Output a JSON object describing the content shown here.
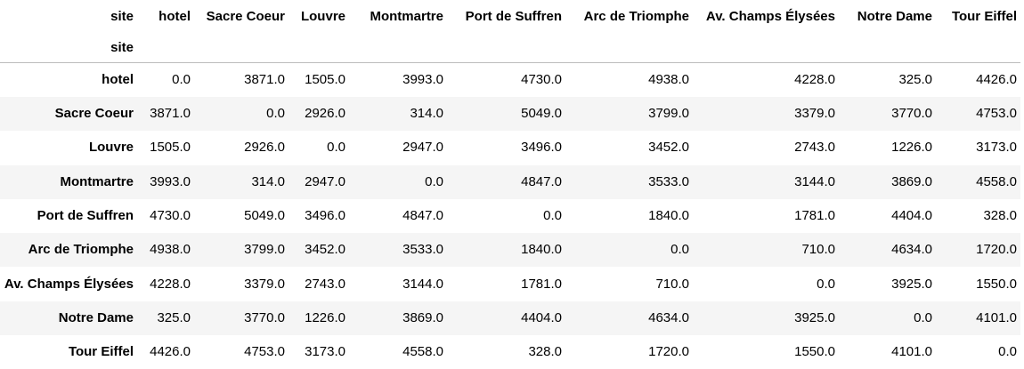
{
  "table": {
    "corner_label": "site",
    "index_name": "site",
    "columns": [
      "hotel",
      "Sacre Coeur",
      "Louvre",
      "Montmartre",
      "Port de Suffren",
      "Arc de Triomphe",
      "Av. Champs Élysées",
      "Notre Dame",
      "Tour Eiffel"
    ],
    "rows": [
      {
        "label": "hotel",
        "values": [
          "0.0",
          "3871.0",
          "1505.0",
          "3993.0",
          "4730.0",
          "4938.0",
          "4228.0",
          "325.0",
          "4426.0"
        ]
      },
      {
        "label": "Sacre Coeur",
        "values": [
          "3871.0",
          "0.0",
          "2926.0",
          "314.0",
          "5049.0",
          "3799.0",
          "3379.0",
          "3770.0",
          "4753.0"
        ]
      },
      {
        "label": "Louvre",
        "values": [
          "1505.0",
          "2926.0",
          "0.0",
          "2947.0",
          "3496.0",
          "3452.0",
          "2743.0",
          "1226.0",
          "3173.0"
        ]
      },
      {
        "label": "Montmartre",
        "values": [
          "3993.0",
          "314.0",
          "2947.0",
          "0.0",
          "4847.0",
          "3533.0",
          "3144.0",
          "3869.0",
          "4558.0"
        ]
      },
      {
        "label": "Port de Suffren",
        "values": [
          "4730.0",
          "5049.0",
          "3496.0",
          "4847.0",
          "0.0",
          "1840.0",
          "1781.0",
          "4404.0",
          "328.0"
        ]
      },
      {
        "label": "Arc de Triomphe",
        "values": [
          "4938.0",
          "3799.0",
          "3452.0",
          "3533.0",
          "1840.0",
          "0.0",
          "710.0",
          "4634.0",
          "1720.0"
        ]
      },
      {
        "label": "Av. Champs Élysées",
        "values": [
          "4228.0",
          "3379.0",
          "2743.0",
          "3144.0",
          "1781.0",
          "710.0",
          "0.0",
          "3925.0",
          "1550.0"
        ]
      },
      {
        "label": "Notre Dame",
        "values": [
          "325.0",
          "3770.0",
          "1226.0",
          "3869.0",
          "4404.0",
          "4634.0",
          "3925.0",
          "0.0",
          "4101.0"
        ]
      },
      {
        "label": "Tour Eiffel",
        "values": [
          "4426.0",
          "4753.0",
          "3173.0",
          "4558.0",
          "328.0",
          "1720.0",
          "1550.0",
          "4101.0",
          "0.0"
        ]
      }
    ]
  },
  "colors": {
    "header_border": "#bdbdbd",
    "stripe": "#f5f5f5",
    "text": "#000000"
  }
}
